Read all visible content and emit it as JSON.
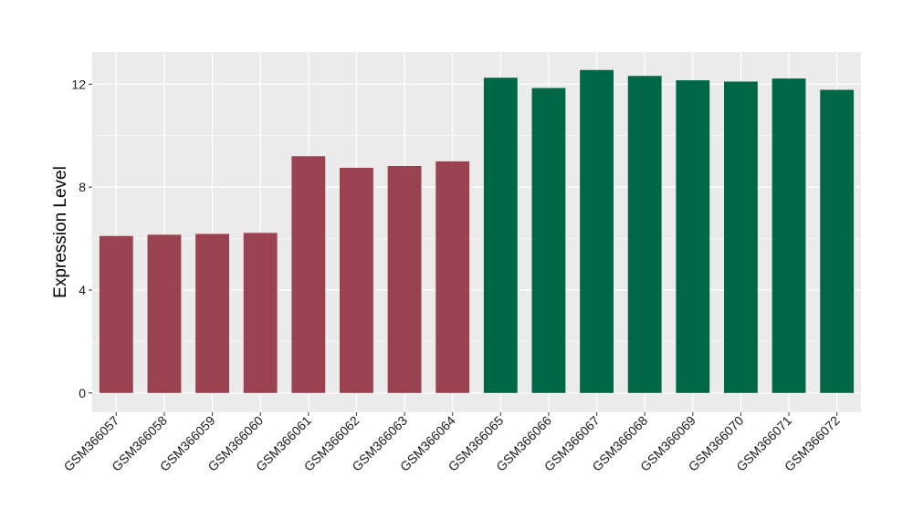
{
  "chart_data": {
    "type": "bar",
    "title": "",
    "xlabel": "",
    "ylabel": "Expression Level",
    "ylim": [
      -0.75,
      13.25
    ],
    "yticks": [
      0,
      4,
      8,
      12
    ],
    "y_minor_ticks": [
      2,
      6,
      10
    ],
    "grid": true,
    "legend": "none",
    "background": "#ebebeb",
    "gridline_color": "#ffffff",
    "categories": [
      "GSM366057",
      "GSM366058",
      "GSM366059",
      "GSM366060",
      "GSM366061",
      "GSM366062",
      "GSM366063",
      "GSM366064",
      "GSM366065",
      "GSM366066",
      "GSM366067",
      "GSM366068",
      "GSM366069",
      "GSM366070",
      "GSM366071",
      "GSM366072"
    ],
    "values": [
      6.1,
      6.15,
      6.18,
      6.22,
      9.2,
      8.75,
      8.82,
      9.0,
      12.25,
      11.85,
      12.55,
      12.32,
      12.15,
      12.1,
      12.22,
      11.78
    ],
    "bar_colors": [
      "#9b4250",
      "#9b4250",
      "#9b4250",
      "#9b4250",
      "#9b4250",
      "#9b4250",
      "#9b4250",
      "#9b4250",
      "#006746",
      "#006746",
      "#006746",
      "#006746",
      "#006746",
      "#006746",
      "#006746",
      "#006746"
    ]
  }
}
